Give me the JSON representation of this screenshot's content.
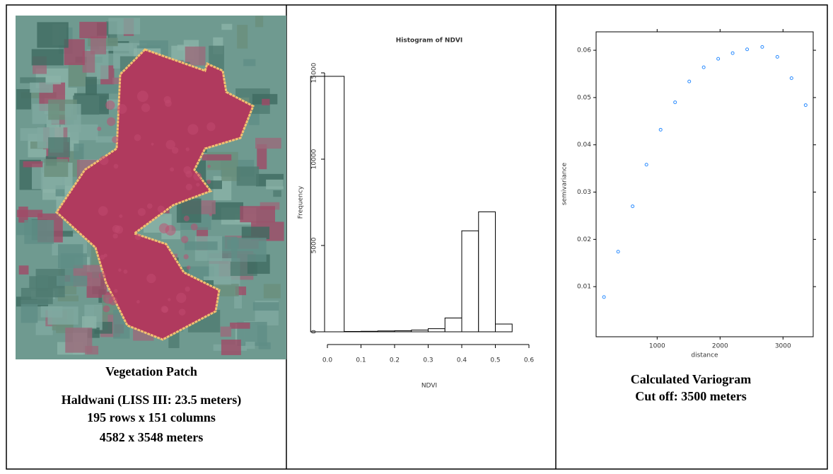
{
  "image_panel": {
    "captions": [
      "Vegetation Patch",
      "Haldwani (LISS III: 23.5 meters)",
      "195 rows x 151 columns",
      "4582 x 3548 meters"
    ]
  },
  "variogram_panel": {
    "captions": [
      "Calculated Variogram",
      "Cut off: 3500 meters"
    ]
  },
  "chart_data": [
    {
      "type": "histogram",
      "title": "Histogram of NDVI",
      "x_label": "NDVI",
      "y_label": "Frequency",
      "bins": [
        -0.05,
        0.05,
        0.1,
        0.15,
        0.2,
        0.25,
        0.3,
        0.35,
        0.4,
        0.45,
        0.5,
        0.55
      ],
      "values": [
        14800,
        20,
        30,
        50,
        60,
        100,
        180,
        800,
        5850,
        6950,
        450
      ],
      "color": "#ffffff",
      "xlim": [
        0,
        0.6
      ],
      "xticks": [
        {
          "value": 0,
          "label": "0.0"
        },
        0.1,
        0.2,
        0.3,
        0.4,
        0.5,
        0.6
      ],
      "ylim": [
        0,
        15000
      ],
      "yticks": [
        0,
        5000,
        10000,
        15000
      ]
    },
    {
      "type": "scatter",
      "x_label": "distance",
      "y_label": "semivariance",
      "color": "#2b8cff",
      "x": [
        155,
        380,
        610,
        830,
        1055,
        1285,
        1510,
        1740,
        1970,
        2200,
        2430,
        2670,
        2910,
        3135,
        3360
      ],
      "values": [
        0.0078,
        0.0174,
        0.027,
        0.0358,
        0.0432,
        0.049,
        0.0534,
        0.0564,
        0.0582,
        0.0594,
        0.0602,
        0.0607,
        0.0586,
        0.0541,
        0.0484
      ],
      "xlim": [
        30,
        3480
      ],
      "xticks": [
        1000,
        2000,
        3000
      ],
      "ylim": [
        -0.0006,
        0.0639
      ],
      "yticks": [
        0.01,
        0.02,
        0.03,
        0.04,
        0.05,
        0.06
      ]
    }
  ]
}
